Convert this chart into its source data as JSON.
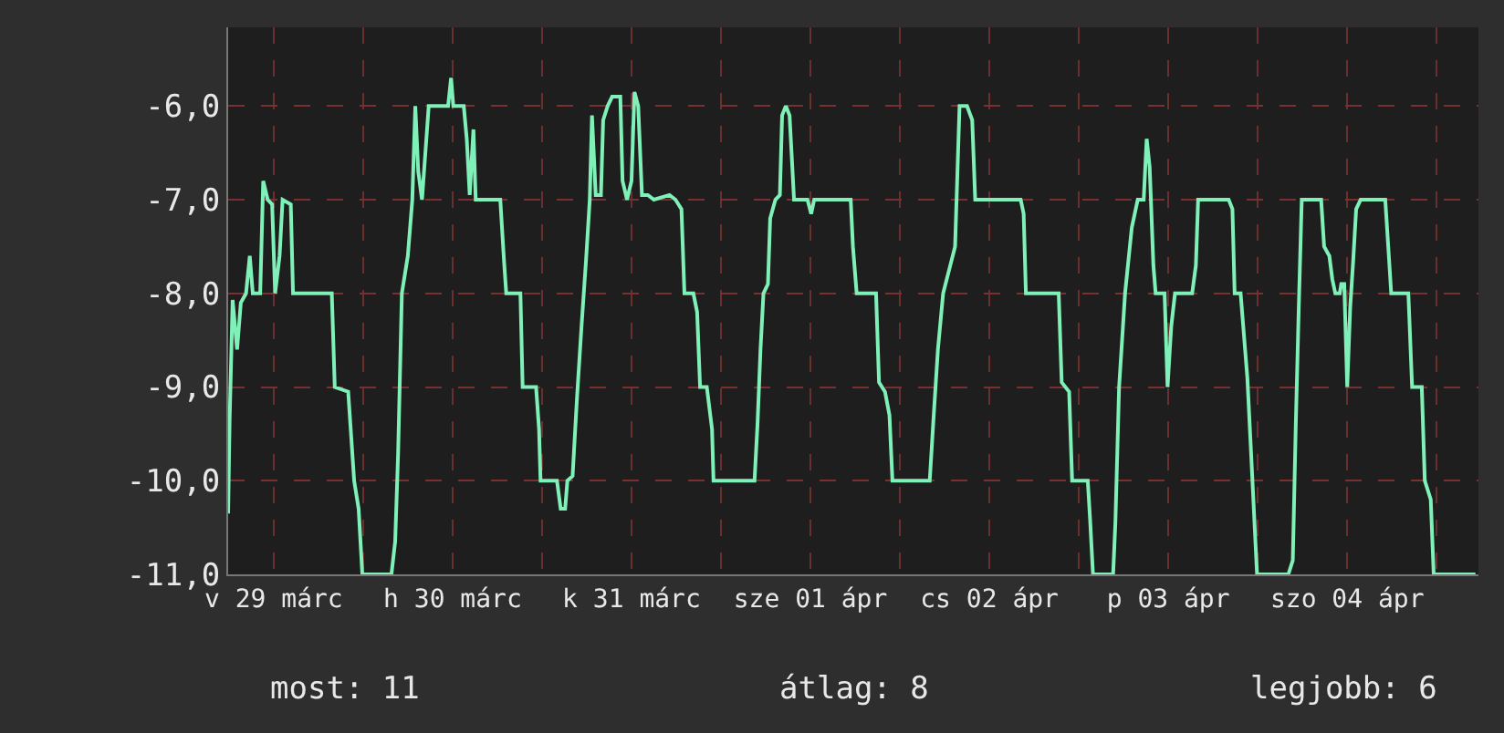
{
  "chart_data": {
    "type": "line",
    "xlim": [
      "--03-29T05:54",
      "--04-05T05:36"
    ],
    "ylim": [
      -11,
      -5.16
    ],
    "xticks": [
      {
        "value": "--03-29T12:00",
        "label": "v 29 márc"
      },
      {
        "value": "--03-30",
        "label": null
      },
      {
        "value": "--03-30T12:00",
        "label": "h 30 márc"
      },
      {
        "value": "--03-31",
        "label": null
      },
      {
        "value": "--03-31T12:00",
        "label": "k 31 márc"
      },
      {
        "value": "--04-01",
        "label": null
      },
      {
        "value": "--04-01T12:00",
        "label": "sze 01 ápr"
      },
      {
        "value": "--04-02",
        "label": null
      },
      {
        "value": "--04-02T12:00",
        "label": "cs 02 ápr"
      },
      {
        "value": "--04-03",
        "label": null
      },
      {
        "value": "--04-03T12:00",
        "label": "p 03 ápr"
      },
      {
        "value": "--04-04",
        "label": null
      },
      {
        "value": "--04-04T12:00",
        "label": "szo 04 ápr"
      },
      {
        "value": "--04-05",
        "label": null
      }
    ],
    "yticks": [
      {
        "value": -6,
        "label": "-6,0"
      },
      {
        "value": -7,
        "label": "-7,0"
      },
      {
        "value": -8,
        "label": "-8,0"
      },
      {
        "value": -9,
        "label": "-9,0"
      },
      {
        "value": -10,
        "label": "-10,0"
      },
      {
        "value": -11,
        "label": "-11,0"
      }
    ],
    "grid": true,
    "annotations": [
      "most: 11",
      "átlag: 8",
      "legjobb: 6"
    ],
    "series": [
      {
        "color": "#7ef0b8",
        "x": [
          "--03-29T05:54",
          "--03-29T06:06",
          "--03-29T06:30",
          "--03-29T07:06",
          "--03-29T07:36",
          "--03-29T08:18",
          "--03-29T08:48",
          "--03-29T09:12",
          "--03-29T10:12",
          "--03-29T10:36",
          "--03-29T11:12",
          "--03-29T11:48",
          "--03-29T12:12",
          "--03-29T12:48",
          "--03-29T13:12",
          "--03-29T14:18",
          "--03-29T14:36",
          "--03-29T19:48",
          "--03-29T20:12",
          "--03-29T22:00",
          "--03-29T22:48",
          "--03-29T23:24",
          "--03-29T23:54",
          "--03-30T03:48",
          "--03-30T04:18",
          "--03-30T04:42",
          "--03-30T05:12",
          "--03-30T06:00",
          "--03-30T06:36",
          "--03-30T07:00",
          "--03-30T07:24",
          "--03-30T07:54",
          "--03-30T08:48",
          "--03-30T11:24",
          "--03-30T11:48",
          "--03-30T12:06",
          "--03-30T13:30",
          "--03-30T13:54",
          "--03-30T14:18",
          "--03-30T14:48",
          "--03-30T15:06",
          "--03-30T18:24",
          "--03-30T18:54",
          "--03-30T19:12",
          "--03-30T21:06",
          "--03-30T21:24",
          "--03-30T23:12",
          "--03-30T23:36",
          "--03-30T23:48",
          "--03-31T02:00",
          "--03-31T02:30",
          "--03-31T03:06",
          "--03-31T03:24",
          "--03-31T04:06",
          "--03-31T04:42",
          "--03-31T05:18",
          "--03-31T05:54",
          "--03-31T06:24",
          "--03-31T06:42",
          "--03-31T07:12",
          "--03-31T07:54",
          "--03-31T08:12",
          "--03-31T08:48",
          "--03-31T09:24",
          "--03-31T10:30",
          "--03-31T10:48",
          "--03-31T11:24",
          "--03-31T12:00",
          "--03-31T12:24",
          "--03-31T12:54",
          "--03-31T13:24",
          "--03-31T14:12",
          "--03-31T15:00",
          "--03-31T17:06",
          "--03-31T17:54",
          "--03-31T18:42",
          "--03-31T19:06",
          "--03-31T20:18",
          "--03-31T20:48",
          "--03-31T21:12",
          "--03-31T22:06",
          "--03-31T22:48",
          "--03-31T23:00",
          "--04-01T04:30",
          "--04-01T04:54",
          "--04-01T05:18",
          "--04-01T05:42",
          "--04-01T06:18",
          "--04-01T06:36",
          "--04-01T07:18",
          "--04-01T07:54",
          "--04-01T08:12",
          "--04-01T08:42",
          "--04-01T09:12",
          "--04-01T09:48",
          "--04-01T11:36",
          "--04-01T12:06",
          "--04-01T12:30",
          "--04-01T17:24",
          "--04-01T17:42",
          "--04-01T18:12",
          "--04-01T20:48",
          "--04-01T21:12",
          "--04-01T22:00",
          "--04-01T22:36",
          "--04-01T23:00",
          "--04-02T04:00",
          "--04-02T04:30",
          "--04-02T05:06",
          "--04-02T05:48",
          "--04-02T07:24",
          "--04-02T08:00",
          "--04-02T09:00",
          "--04-02T09:42",
          "--04-02T10:06",
          "--04-02T16:12",
          "--04-02T16:36",
          "--04-02T16:54",
          "--04-02T21:18",
          "--04-02T21:42",
          "--04-02T22:42",
          "--04-02T23:06",
          "--04-03T01:12",
          "--04-03T01:30",
          "--04-03T01:54",
          "--04-03T04:36",
          "--04-03T04:54",
          "--04-03T05:24",
          "--04-03T06:12",
          "--04-03T07:06",
          "--04-03T07:54",
          "--04-03T08:42",
          "--04-03T09:06",
          "--04-03T09:30",
          "--04-03T10:00",
          "--04-03T10:18",
          "--04-03T11:30",
          "--04-03T11:54",
          "--04-03T12:24",
          "--04-03T12:54",
          "--04-03T15:12",
          "--04-03T15:42",
          "--04-03T16:00",
          "--04-03T20:06",
          "--04-03T20:36",
          "--04-03T20:54",
          "--04-03T21:42",
          "--04-03T22:36",
          "--04-03T23:06",
          "--04-03T23:54",
          "--04-04T04:06",
          "--04-04T04:42",
          "--04-04T05:06",
          "--04-04T05:30",
          "--04-04T05:54",
          "--04-04T08:30",
          "--04-04T08:54",
          "--04-04T09:36",
          "--04-04T10:00",
          "--04-04T10:24",
          "--04-04T11:00",
          "--04-04T11:12",
          "--04-04T11:36",
          "--04-04T12:00",
          "--04-04T12:24",
          "--04-04T12:48",
          "--04-04T13:12",
          "--04-04T13:48",
          "--04-04T17:06",
          "--04-04T17:30",
          "--04-04T17:54",
          "--04-04T20:12",
          "--04-04T20:42",
          "--04-04T22:00",
          "--04-04T22:24",
          "--04-04T23:12",
          "--04-04T23:36",
          "--04-05T05:12"
        ],
        "values": [
          -10.35,
          -9.35,
          -8.07,
          -8.6,
          -8.1,
          -8,
          -7.6,
          -8,
          -8,
          -6.8,
          -7,
          -7.05,
          -8,
          -7.6,
          -7,
          -7.05,
          -8,
          -8,
          -9,
          -9.05,
          -10,
          -10.3,
          -11,
          -11,
          -10.65,
          -9.7,
          -8,
          -7.6,
          -7,
          -6,
          -6.7,
          -7,
          -6,
          -6,
          -5.7,
          -6,
          -6,
          -6.35,
          -6.95,
          -6.25,
          -7,
          -7,
          -7.65,
          -8,
          -8,
          -9,
          -9,
          -9.45,
          -10,
          -10,
          -10.3,
          -10.3,
          -10,
          -9.95,
          -9.1,
          -8.35,
          -7.65,
          -7,
          -6.1,
          -6.95,
          -6.95,
          -6.15,
          -6,
          -5.9,
          -5.9,
          -6.8,
          -7,
          -6.8,
          -5.85,
          -6,
          -6.95,
          -6.95,
          -7,
          -6.95,
          -7,
          -7.1,
          -8,
          -8,
          -8.2,
          -9,
          -9,
          -9.45,
          -10,
          -10,
          -9.4,
          -8.6,
          -8,
          -7.9,
          -7.2,
          -7,
          -6.95,
          -6.1,
          -6,
          -6.1,
          -7,
          -7,
          -7.15,
          -7,
          -7,
          -7.5,
          -8,
          -8,
          -8.95,
          -9.05,
          -9.3,
          -10,
          -10,
          -9.35,
          -8.6,
          -8,
          -7.5,
          -6,
          -6,
          -6.15,
          -7,
          -7,
          -7.15,
          -8,
          -8,
          -8.95,
          -9.05,
          -10,
          -10,
          -10.4,
          -11,
          -11,
          -10.45,
          -9,
          -8,
          -7.3,
          -7,
          -7,
          -6.35,
          -6.65,
          -7.7,
          -8,
          -8,
          -9,
          -8.35,
          -8,
          -8,
          -7.7,
          -7,
          -7,
          -7.1,
          -8,
          -8,
          -8.9,
          -9.7,
          -11,
          -11,
          -10.85,
          -9.4,
          -8.15,
          -7,
          -7,
          -7.5,
          -7.6,
          -7.85,
          -8,
          -8,
          -7.9,
          -7.9,
          -9,
          -8.15,
          -7.65,
          -7.1,
          -7,
          -7,
          -7.5,
          -8,
          -8,
          -9,
          -9,
          -10,
          -10.2,
          -11,
          -11
        ]
      }
    ]
  }
}
